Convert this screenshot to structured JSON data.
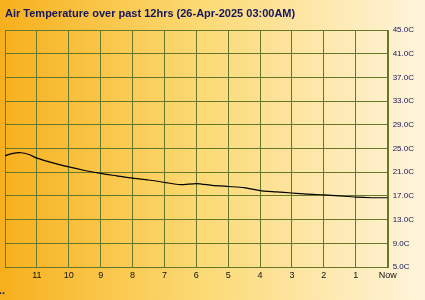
{
  "chart_data": {
    "type": "line",
    "title": "Air Temperature over past 12hrs (26-Apr-2025 03:00AM)",
    "x_label": "Hours ago...",
    "x": [
      12,
      11.75,
      11.5,
      11.25,
      11,
      10.5,
      10,
      9.5,
      9,
      8.5,
      8,
      7.5,
      7,
      6.5,
      6,
      5.5,
      5,
      4.5,
      4,
      3.5,
      3,
      2.5,
      2,
      1.5,
      1,
      0.5,
      0
    ],
    "values": [
      23.8,
      24.2,
      24.3,
      24.0,
      23.4,
      22.6,
      21.9,
      21.3,
      20.8,
      20.4,
      20.0,
      19.7,
      19.3,
      18.9,
      19.1,
      18.8,
      18.6,
      18.4,
      17.9,
      17.7,
      17.5,
      17.3,
      17.2,
      17.0,
      16.8,
      16.7,
      16.7
    ],
    "color": "#000000",
    "xlim": [
      12,
      0
    ],
    "xticks": [
      11,
      10,
      9,
      8,
      7,
      6,
      5,
      4,
      3,
      2,
      1,
      {
        "value": 0,
        "label": "Now"
      }
    ],
    "ylim": [
      5,
      45
    ],
    "yticks": [
      {
        "value": 5,
        "label": "5.0C"
      },
      {
        "value": 9,
        "label": "9.0C"
      },
      {
        "value": 13,
        "label": "13.0C"
      },
      {
        "value": 17,
        "label": "17.0C"
      },
      {
        "value": 21,
        "label": "21.0C"
      },
      {
        "value": 25,
        "label": "25.0C"
      },
      {
        "value": 29,
        "label": "29.0C"
      },
      {
        "value": 33,
        "label": "33.0C"
      },
      {
        "value": 37,
        "label": "37.0C"
      },
      {
        "value": 41,
        "label": "41.0C"
      },
      {
        "value": 45,
        "label": "45.0C"
      }
    ],
    "grid": true
  }
}
